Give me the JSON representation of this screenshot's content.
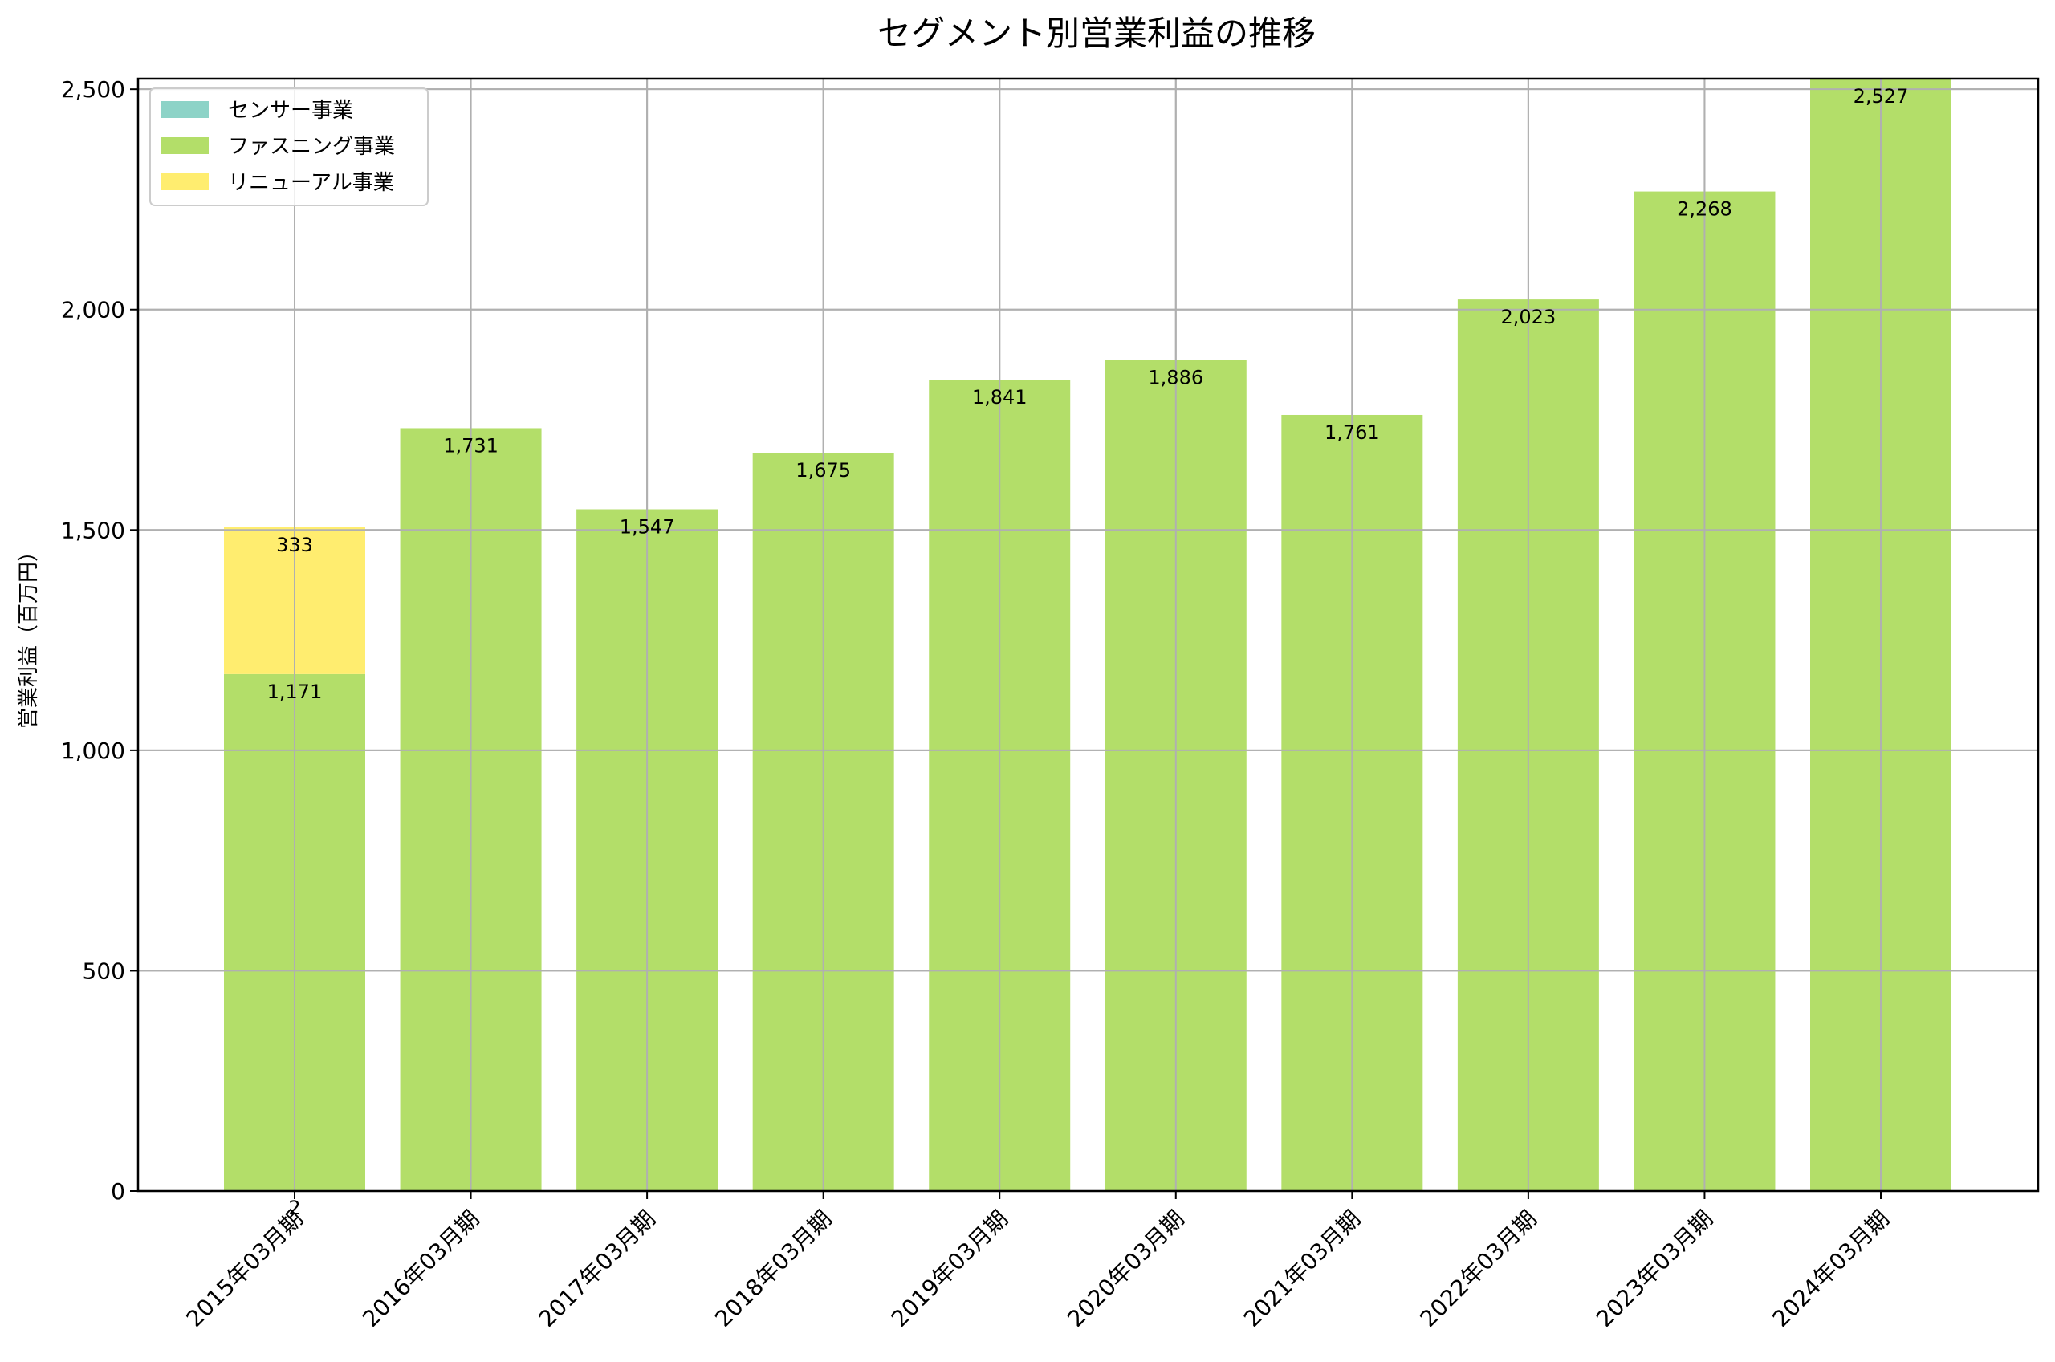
{
  "chart_data": {
    "type": "bar",
    "stacked": true,
    "title": "セグメント別営業利益の推移",
    "xlabel": "",
    "ylabel": "営業利益（百万円）",
    "ylim": [
      0,
      2524
    ],
    "yticks": [
      0,
      500,
      1000,
      1500,
      2000,
      2500
    ],
    "ytick_labels": [
      "0",
      "500",
      "1,000",
      "1,500",
      "2,000",
      "2,500"
    ],
    "grid": true,
    "legend_position": "upper left",
    "categories": [
      "2015年03月期",
      "2016年03月期",
      "2017年03月期",
      "2018年03月期",
      "2019年03月期",
      "2020年03月期",
      "2021年03月期",
      "2022年03月期",
      "2023年03月期",
      "2024年03月期"
    ],
    "series": [
      {
        "name": "センサー事業",
        "color": "#8dd3c7",
        "values": [
          2,
          0,
          0,
          0,
          0,
          0,
          0,
          0,
          0,
          0
        ],
        "labels": [
          "2",
          "",
          "",
          "",
          "",
          "",
          "",
          "",
          "",
          ""
        ]
      },
      {
        "name": "ファスニング事業",
        "color": "#b3de69",
        "values": [
          1171,
          1731,
          1547,
          1675,
          1841,
          1886,
          1761,
          2023,
          2268,
          2527
        ],
        "labels": [
          "1,171",
          "1,731",
          "1,547",
          "1,675",
          "1,841",
          "1,886",
          "1,761",
          "2,023",
          "2,268",
          "2,527"
        ]
      },
      {
        "name": "リニューアル事業",
        "color": "#ffed6f",
        "values": [
          333,
          0,
          0,
          0,
          0,
          0,
          0,
          0,
          0,
          0
        ],
        "labels": [
          "333",
          "",
          "",
          "",
          "",
          "",
          "",
          "",
          "",
          ""
        ]
      }
    ]
  },
  "colors": {
    "grid": "#b0b0b0",
    "axis": "#000000",
    "legend_border": "#cccccc"
  }
}
